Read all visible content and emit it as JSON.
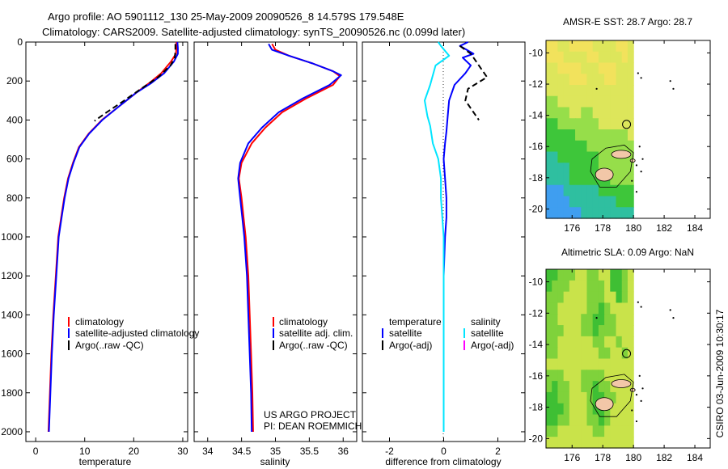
{
  "header": {
    "title_line1": "Argo profile: AO 5901112_130 25-May-2009 20090526_8 14.579S 179.548E",
    "title_line2": "Climatology: CARS2009. Satellite-adjusted climatology: synTS_20090526.nc (0.099d later)"
  },
  "credit": {
    "line1": "US ARGO PROJECT",
    "line2": "PI: DEAN ROEMMICH"
  },
  "stamp": "CSIRO 03-Jun-2009 10:30:17",
  "colors": {
    "climatology": "#ff0000",
    "satellite": "#0000ff",
    "argo": "#000000",
    "salinity_sat": "#00e5ff",
    "salinity_argo": "#ff00ff"
  },
  "chart_data": [
    {
      "id": "temperature",
      "type": "line",
      "xlabel": "temperature",
      "ylabel": "",
      "xlim": [
        -2,
        31
      ],
      "ylim": [
        2050,
        0
      ],
      "xticks": [
        0,
        10,
        20,
        30
      ],
      "yticks": [
        0,
        200,
        400,
        600,
        800,
        1000,
        1200,
        1400,
        1600,
        1800,
        2000
      ],
      "legend": {
        "placement": "lower-center",
        "entries": [
          "climatology",
          "satellite-adjusted climatology",
          "Argo(..raw -QC)"
        ]
      },
      "series": [
        {
          "name": "climatology",
          "color": "#ff0000",
          "points": [
            [
              28.7,
              0
            ],
            [
              28.7,
              30
            ],
            [
              28.6,
              60
            ],
            [
              27.6,
              100
            ],
            [
              25.6,
              160
            ],
            [
              23.2,
              210
            ],
            [
              20.5,
              260
            ],
            [
              17.0,
              330
            ],
            [
              13.5,
              400
            ],
            [
              10.8,
              470
            ],
            [
              8.8,
              540
            ],
            [
              7.6,
              620
            ],
            [
              6.6,
              700
            ],
            [
              5.8,
              800
            ],
            [
              5.2,
              900
            ],
            [
              4.6,
              1000
            ],
            [
              4.1,
              1200
            ],
            [
              3.6,
              1400
            ],
            [
              3.2,
              1600
            ],
            [
              2.9,
              1800
            ],
            [
              2.6,
              2000
            ]
          ]
        },
        {
          "name": "satellite-adjusted climatology",
          "color": "#0000ff",
          "points": [
            [
              28.9,
              0
            ],
            [
              29.0,
              30
            ],
            [
              29.0,
              60
            ],
            [
              28.2,
              100
            ],
            [
              26.2,
              160
            ],
            [
              23.6,
              210
            ],
            [
              20.5,
              260
            ],
            [
              17.0,
              330
            ],
            [
              13.6,
              400
            ],
            [
              10.9,
              470
            ],
            [
              8.9,
              540
            ],
            [
              7.7,
              620
            ],
            [
              6.7,
              700
            ],
            [
              5.9,
              800
            ],
            [
              5.3,
              900
            ],
            [
              4.7,
              1000
            ],
            [
              4.2,
              1200
            ],
            [
              3.7,
              1400
            ],
            [
              3.3,
              1600
            ],
            [
              3.0,
              1800
            ],
            [
              2.7,
              2000
            ]
          ]
        },
        {
          "name": "Argo(..raw -QC)",
          "color": "#000000",
          "dashed": true,
          "points": [
            [
              28.5,
              10
            ],
            [
              28.5,
              40
            ],
            [
              28.4,
              80
            ],
            [
              27.5,
              120
            ],
            [
              25.0,
              180
            ],
            [
              21.5,
              240
            ],
            [
              17.5,
              310
            ],
            [
              14.5,
              360
            ],
            [
              12.0,
              405
            ]
          ]
        }
      ]
    },
    {
      "id": "salinity",
      "type": "line",
      "xlabel": "salinity",
      "ylabel": "",
      "xlim": [
        33.8,
        36.2
      ],
      "ylim": [
        2050,
        0
      ],
      "xticks": [
        34,
        34.5,
        35,
        35.5,
        36
      ],
      "yticks": [],
      "legend": {
        "placement": "lower-center",
        "entries": [
          "climatology",
          "satellite adj. clim.",
          "Argo(..raw -QC)"
        ]
      },
      "series": [
        {
          "name": "climatology",
          "color": "#ff0000",
          "points": [
            [
              34.95,
              10
            ],
            [
              35.0,
              40
            ],
            [
              35.2,
              70
            ],
            [
              35.55,
              110
            ],
            [
              35.85,
              150
            ],
            [
              35.95,
              175
            ],
            [
              35.85,
              220
            ],
            [
              35.45,
              290
            ],
            [
              35.1,
              360
            ],
            [
              34.85,
              440
            ],
            [
              34.65,
              520
            ],
            [
              34.5,
              620
            ],
            [
              34.46,
              700
            ],
            [
              34.5,
              800
            ],
            [
              34.53,
              900
            ],
            [
              34.56,
              1000
            ],
            [
              34.6,
              1200
            ],
            [
              34.62,
              1400
            ],
            [
              34.64,
              1600
            ],
            [
              34.66,
              1800
            ],
            [
              34.67,
              2000
            ]
          ]
        },
        {
          "name": "satellite adj. clim.",
          "color": "#0000ff",
          "points": [
            [
              34.9,
              10
            ],
            [
              34.95,
              40
            ],
            [
              35.2,
              70
            ],
            [
              35.55,
              110
            ],
            [
              35.85,
              150
            ],
            [
              35.97,
              170
            ],
            [
              35.8,
              220
            ],
            [
              35.4,
              290
            ],
            [
              35.05,
              360
            ],
            [
              34.8,
              440
            ],
            [
              34.6,
              520
            ],
            [
              34.48,
              620
            ],
            [
              34.45,
              700
            ],
            [
              34.48,
              800
            ],
            [
              34.51,
              900
            ],
            [
              34.54,
              1000
            ],
            [
              34.58,
              1200
            ],
            [
              34.6,
              1400
            ],
            [
              34.62,
              1600
            ],
            [
              34.64,
              1800
            ],
            [
              34.65,
              2000
            ]
          ]
        }
      ]
    },
    {
      "id": "difference",
      "type": "line",
      "xlabel": "difference from climatology",
      "ylabel": "",
      "xlim": [
        -3,
        3
      ],
      "ylim": [
        2050,
        0
      ],
      "xticks": [
        -2,
        0,
        2
      ],
      "yticks": [],
      "legend": {
        "placement": "lower-center",
        "col1_title": "temperature",
        "col2_title": "salinity",
        "entries": [
          "satellite",
          "Argo(-adj)",
          "satellite",
          "Argo(-adj)"
        ]
      },
      "series": [
        {
          "name": "temperature satellite",
          "color": "#0000ff",
          "points": [
            [
              0.9,
              0
            ],
            [
              0.6,
              20
            ],
            [
              1.1,
              60
            ],
            [
              0.7,
              80
            ],
            [
              1.0,
              120
            ],
            [
              0.8,
              160
            ],
            [
              0.4,
              220
            ],
            [
              0.2,
              300
            ],
            [
              0.15,
              380
            ],
            [
              0.1,
              460
            ],
            [
              0.05,
              520
            ],
            [
              0.0,
              600
            ],
            [
              0.05,
              700
            ],
            [
              0.1,
              800
            ],
            [
              0.1,
              900
            ],
            [
              0.05,
              1000
            ],
            [
              0.0,
              1200
            ],
            [
              0.0,
              1400
            ],
            [
              0.0,
              1600
            ],
            [
              0.0,
              1800
            ],
            [
              0.0,
              2000
            ]
          ]
        },
        {
          "name": "temperature Argo(-adj)",
          "color": "#000000",
          "dashed": true,
          "points": [
            [
              0.6,
              20
            ],
            [
              1.0,
              60
            ],
            [
              1.3,
              120
            ],
            [
              1.6,
              180
            ],
            [
              0.9,
              240
            ],
            [
              0.8,
              300
            ],
            [
              1.0,
              340
            ],
            [
              1.3,
              400
            ]
          ]
        },
        {
          "name": "salinity satellite",
          "color": "#00e5ff",
          "points": [
            [
              -0.2,
              0
            ],
            [
              -0.1,
              20
            ],
            [
              0.2,
              70
            ],
            [
              -0.3,
              120
            ],
            [
              -0.5,
              220
            ],
            [
              -0.7,
              300
            ],
            [
              -0.6,
              380
            ],
            [
              -0.5,
              430
            ],
            [
              -0.4,
              520
            ],
            [
              -0.2,
              600
            ],
            [
              -0.1,
              700
            ],
            [
              -0.1,
              800
            ],
            [
              -0.05,
              900
            ],
            [
              0.0,
              1000
            ],
            [
              0.0,
              1200
            ],
            [
              0.0,
              1400
            ],
            [
              0.0,
              1600
            ],
            [
              0.0,
              1800
            ],
            [
              0.0,
              2000
            ]
          ]
        }
      ]
    },
    {
      "id": "map_sst",
      "type": "heatmap",
      "title": "AMSR-E SST: 28.7 Argo: 28.7",
      "xlim": [
        174.3,
        185
      ],
      "ylim": [
        -20.6,
        -9.2
      ],
      "xticks": [
        176,
        178,
        180,
        182,
        184
      ],
      "yticks": [
        -10,
        -12,
        -14,
        -16,
        -18,
        -20
      ],
      "data_lon_max": 180,
      "argo_position": [
        179.548,
        -14.579
      ],
      "field_rows_north_to_south": [
        "aabbaaaabbbbaab",
        "aaabbbbaabbbbab",
        "bbaaaabbbaaabbb",
        "bbbbaaabbbaabbb",
        "bbbbbbbbbbbbbbb",
        "ccbbbbbbbbbbbbb",
        "ccccbbccbbbbbbb",
        "ddcccccccbbbbbb",
        "dddddcccccccccb",
        "dddddddcccccccc",
        "eedddddddcccccc",
        "eeeedddddcccccc",
        "eeeedddddddcccc",
        "fffeeeeeedddddd",
        "ffffeeeeeeeeddd",
        "ffffffeeeeeeeee"
      ],
      "palette": {
        "a": "#f2e25c",
        "b": "#dde65b",
        "c": "#96de4a",
        "d": "#3ec63a",
        "e": "#2fbfa0",
        "f": "#3f9ef0"
      }
    },
    {
      "id": "map_sla",
      "type": "heatmap",
      "title": "Altimetric SLA: 0.09 Argo: NaN",
      "xlim": [
        174.3,
        185
      ],
      "ylim": [
        -20.6,
        -9.2
      ],
      "xticks": [
        176,
        178,
        180,
        182,
        184
      ],
      "yticks": [
        -10,
        -12,
        -14,
        -16,
        -18,
        -20
      ],
      "data_lon_max": 180,
      "argo_position": [
        179.548,
        -14.579
      ],
      "field_rows_north_to_south": [
        "ddcccbbccbbddcb",
        "dcccbbbcccbddcb",
        "cccbbbbcccbbdcb",
        "ccbbbbbccdcbbbb",
        "ccbbbbccddccbbb",
        "cccbbbccdcccbbb",
        "ccbbbbbbccbbcbb",
        "ccbbbbbbbccbbcb",
        "bbbbbbbbbbbbbbb",
        "cccbbbccccbbbbb",
        "cdccbbccdccbbbb",
        "ddccbbbcddccbbb",
        "dddcbbbcddcbbbb",
        "ddccbbbccdcbbbb",
        "ccbbbbbbccbbbbb",
        "bbbbbbbbbbbbbbb"
      ],
      "palette": {
        "a": "#f0e34a",
        "b": "#c9e34a",
        "c": "#7fd23b",
        "d": "#3fbf34"
      }
    }
  ]
}
